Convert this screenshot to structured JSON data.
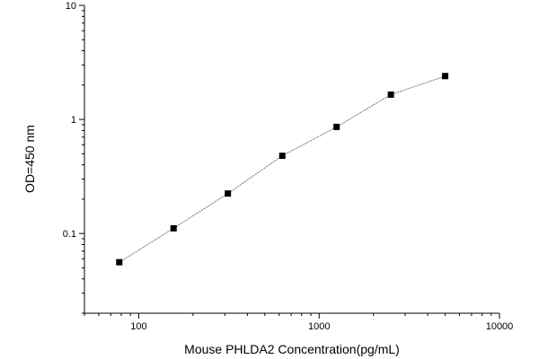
{
  "chart_data": {
    "type": "scatter",
    "xlabel": "Mouse PHLDA2 Concentration(pg/mL)",
    "ylabel": "OD=450 nm",
    "x_scale": "log",
    "y_scale": "log",
    "xlim": [
      50,
      10000
    ],
    "ylim": [
      0.02,
      10
    ],
    "x_tick_labels": [
      {
        "value": 100,
        "label": "100"
      },
      {
        "value": 1000,
        "label": "1000"
      },
      {
        "value": 10000,
        "label": "10000"
      }
    ],
    "y_tick_labels": [
      {
        "value": 0.1,
        "label": "0.1"
      },
      {
        "value": 1,
        "label": "1"
      },
      {
        "value": 10,
        "label": "10"
      }
    ],
    "grid": false,
    "series": [
      {
        "x": [
          78,
          156,
          312,
          625,
          1250,
          2500,
          5000
        ],
        "y": [
          0.056,
          0.111,
          0.224,
          0.48,
          0.86,
          1.65,
          2.4
        ],
        "marker": "square",
        "color": "#000000",
        "line_color": "#555555"
      }
    ]
  }
}
